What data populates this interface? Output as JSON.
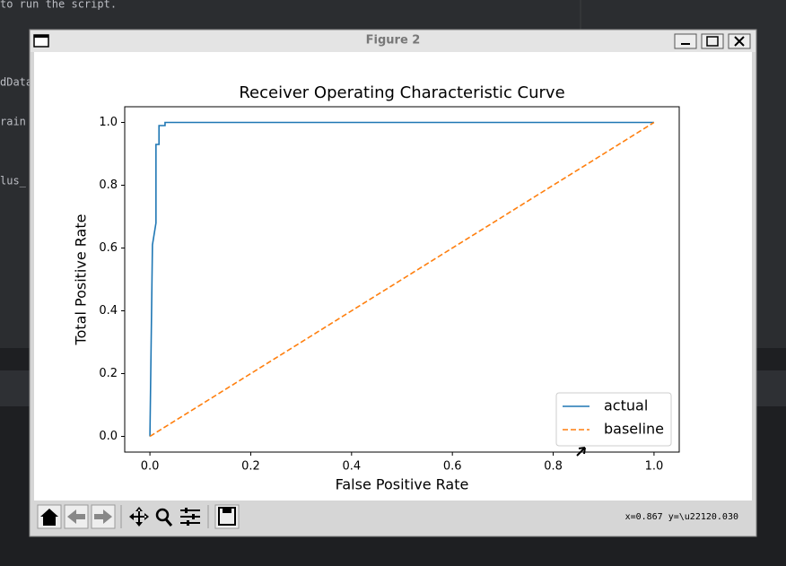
{
  "background": {
    "lines": [
      "to run the script.",
      "dData",
      "rain",
      "lus_"
    ]
  },
  "window": {
    "title": "Figure 2",
    "status": "x=0.867 y=\\u22120.030"
  },
  "chart_data": {
    "type": "line",
    "title": "Receiver Operating Characteristic Curve",
    "xlabel": "False Positive Rate",
    "ylabel": "Total Positive Rate",
    "xlim": [
      -0.05,
      1.05
    ],
    "ylim": [
      -0.05,
      1.05
    ],
    "xticks": [
      {
        "value": 0,
        "label": "0.0"
      },
      0.2,
      0.4,
      0.6,
      0.8,
      {
        "value": 1,
        "label": "1.0"
      }
    ],
    "yticks": [
      {
        "value": 0,
        "label": "0.0"
      },
      0.2,
      0.4,
      0.6,
      0.8,
      {
        "value": 1,
        "label": "1.0"
      }
    ],
    "legend": "lower right",
    "series": [
      {
        "name": "actual",
        "color": "#1f77b4",
        "style": "solid",
        "x": [
          0,
          0.005,
          0.012,
          0.012,
          0.018,
          0.018,
          0.03,
          0.03,
          1
        ],
        "values": [
          0,
          0.61,
          0.68,
          0.93,
          0.93,
          0.99,
          0.99,
          1,
          1
        ]
      },
      {
        "name": "baseline",
        "color": "#ff7f0e",
        "style": "dashed",
        "x": [
          0,
          1
        ],
        "values": [
          0,
          1
        ]
      }
    ]
  }
}
